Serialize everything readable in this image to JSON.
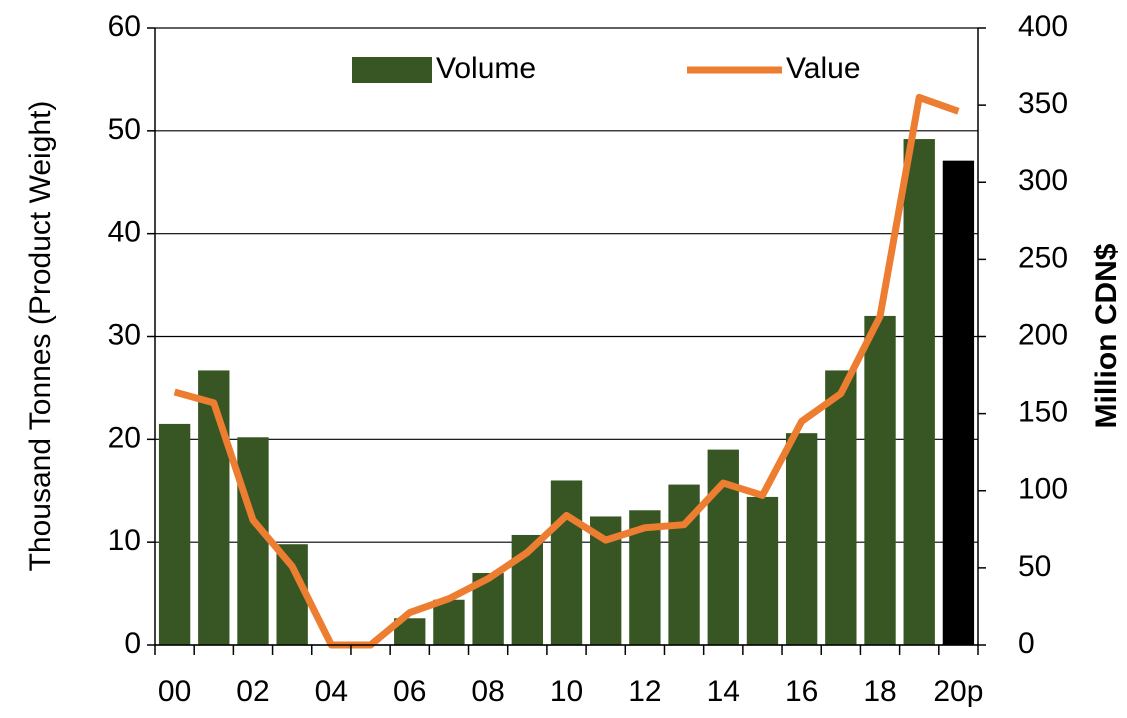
{
  "chart_data": {
    "type": "bar_line",
    "categories": [
      "00",
      null,
      "02",
      null,
      "04",
      null,
      "06",
      null,
      "08",
      null,
      "10",
      null,
      "12",
      null,
      "14",
      null,
      "16",
      null,
      "18",
      null,
      "20p"
    ],
    "series": [
      {
        "name": "Volume",
        "type": "bar",
        "color": "#375623",
        "colors": [
          "#375623",
          "#375623",
          "#375623",
          "#375623",
          "#375623",
          "#375623",
          "#375623",
          "#375623",
          "#375623",
          "#375623",
          "#375623",
          "#375623",
          "#375623",
          "#375623",
          "#375623",
          "#375623",
          "#375623",
          "#375623",
          "#375623",
          "#375623",
          "#000000"
        ],
        "values": [
          21.5,
          26.7,
          20.2,
          9.8,
          0,
          0,
          2.6,
          4.4,
          7.0,
          10.7,
          16.0,
          12.5,
          13.1,
          15.6,
          19.0,
          14.4,
          20.6,
          26.7,
          32.0,
          49.2,
          47.1
        ]
      },
      {
        "name": "Value",
        "type": "line",
        "axis": "y2",
        "color": "#ed7d31",
        "values": [
          164,
          157,
          81,
          51,
          0,
          0,
          21,
          30,
          43,
          60,
          84,
          68,
          76,
          78,
          105,
          97,
          145,
          163,
          213,
          355,
          346
        ]
      }
    ],
    "ylabel": "Thousand Tonnes  (Product Weight)",
    "y2label": "Million  CDN$",
    "ylim": [
      0,
      60
    ],
    "yticks": [
      0,
      10,
      20,
      30,
      40,
      50,
      60
    ],
    "y2lim": [
      0,
      400
    ],
    "y2ticks": [
      0,
      50,
      100,
      150,
      200,
      250,
      300,
      350,
      400
    ],
    "grid": true,
    "legend": "top"
  }
}
